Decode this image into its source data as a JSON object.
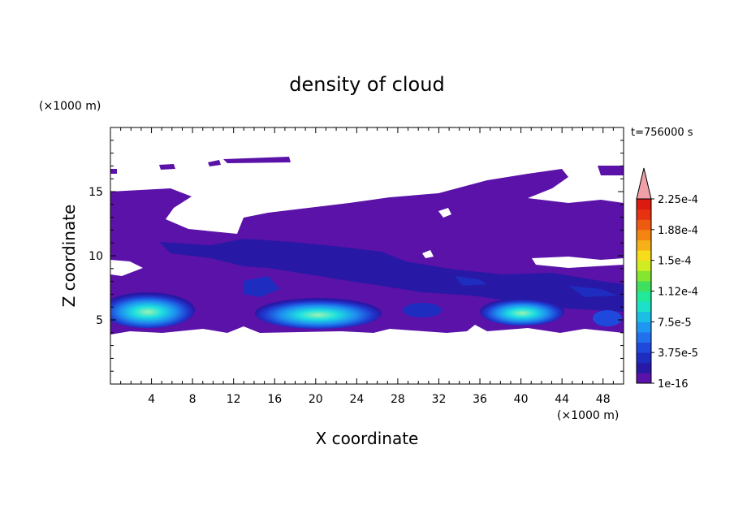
{
  "chart_data": {
    "type": "heatmap",
    "title": "density of cloud",
    "xlabel": "X coordinate",
    "ylabel": "Z coordinate",
    "x_unit": "(×1000 m)",
    "y_unit": "(×1000 m)",
    "time_label": "t=756000 s",
    "xlim": [
      0,
      50
    ],
    "ylim": [
      0,
      20
    ],
    "x_ticks": [
      4,
      8,
      12,
      16,
      20,
      24,
      28,
      32,
      36,
      40,
      44,
      48
    ],
    "y_ticks": [
      5,
      10,
      15
    ],
    "colorbar": {
      "levels": [
        "1e-16",
        "3.75e-5",
        "7.5e-5",
        "1.12e-4",
        "1.5e-4",
        "1.88e-4",
        "2.25e-4"
      ],
      "colors": [
        "#5a12a8",
        "#2818a6",
        "#1e2cc0",
        "#1f48dc",
        "#2170ee",
        "#1e97f2",
        "#1bbfe6",
        "#1de0c8",
        "#22e89a",
        "#3fe060",
        "#84e62e",
        "#d0ec22",
        "#f6dc1a",
        "#f8b018",
        "#f48412",
        "#ee5a10",
        "#e63210",
        "#dc1a10"
      ],
      "extend_color": "#f0a0a6"
    },
    "cloud_core_centers_x": [
      4.5,
      20,
      40
    ]
  }
}
